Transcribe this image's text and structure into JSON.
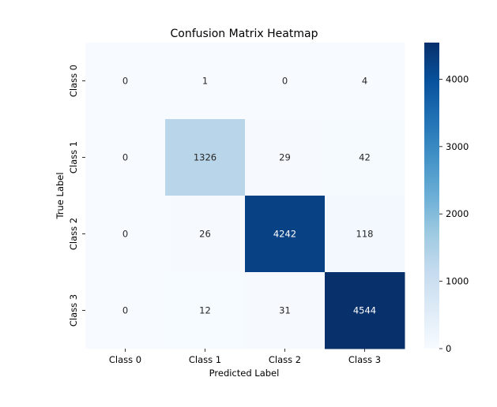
{
  "chart_data": {
    "type": "heatmap",
    "title": "Confusion Matrix Heatmap",
    "xlabel": "Predicted Label",
    "ylabel": "True Label",
    "x_categories": [
      "Class 0",
      "Class 1",
      "Class 2",
      "Class 3"
    ],
    "y_categories": [
      "Class 0",
      "Class 1",
      "Class 2",
      "Class 3"
    ],
    "values": [
      [
        0,
        1,
        0,
        4
      ],
      [
        0,
        1326,
        29,
        42
      ],
      [
        0,
        26,
        4242,
        118
      ],
      [
        0,
        12,
        31,
        4544
      ]
    ],
    "colormap": "Blues",
    "color_range": [
      0,
      4544
    ],
    "colorbar_ticks": [
      0,
      1000,
      2000,
      3000,
      4000
    ],
    "colorbar_tick_labels": [
      "0",
      "1000",
      "2000",
      "3000",
      "4000"
    ]
  }
}
